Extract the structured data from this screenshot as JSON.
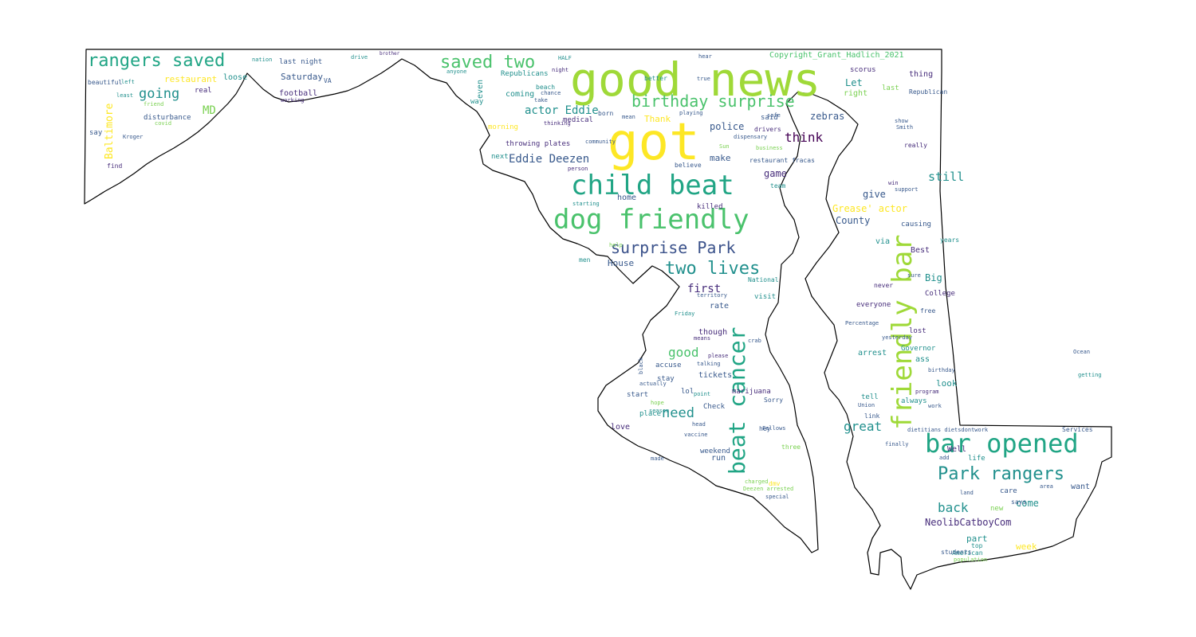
{
  "image": {
    "subject": "word cloud in the shape of Maryland",
    "outline_color": "#000000",
    "palette": {
      "yellow": "#e3e419",
      "lime": "#9fd938",
      "green": "#4ac26c",
      "teal": "#21a585",
      "cyan": "#21908d",
      "blue": "#38598c",
      "navy": "#3b528b",
      "purple": "#472d7b",
      "dark": "#440154",
      "pale_yellow": "#fde725",
      "pale_green": "#7ad151"
    }
  },
  "words": [
    {
      "text": "good news",
      "color": "lime"
    },
    {
      "text": "got",
      "color": "pale_yellow"
    },
    {
      "text": "child beat",
      "color": "teal"
    },
    {
      "text": "dog friendly",
      "color": "green"
    },
    {
      "text": "surprise Park",
      "color": "navy"
    },
    {
      "text": "two lives",
      "color": "cyan"
    },
    {
      "text": "beat cancer",
      "color": "teal"
    },
    {
      "text": "friendly bar",
      "color": "lime"
    },
    {
      "text": "bar opened",
      "color": "teal"
    },
    {
      "text": "Park rangers",
      "color": "cyan"
    },
    {
      "text": "rangers saved",
      "color": "teal"
    },
    {
      "text": "saved two",
      "color": "green"
    },
    {
      "text": "birthday surprise",
      "color": "green"
    },
    {
      "text": "actor Eddie",
      "color": "cyan"
    },
    {
      "text": "Eddie Deezen",
      "color": "blue"
    },
    {
      "text": "going",
      "color": "cyan"
    },
    {
      "text": "restaurant",
      "color": "pale_yellow"
    },
    {
      "text": "MD",
      "color": "pale_green"
    },
    {
      "text": "Baltimore",
      "color": "pale_yellow"
    },
    {
      "text": "Saturday",
      "color": "blue"
    },
    {
      "text": "football",
      "color": "purple"
    },
    {
      "text": "last night",
      "color": "blue"
    },
    {
      "text": "loose",
      "color": "cyan"
    },
    {
      "text": "disturbance",
      "color": "blue"
    },
    {
      "text": "Copyright_Grant_Hadlich_2021",
      "color": "green"
    },
    {
      "text": "Let",
      "color": "cyan"
    },
    {
      "text": "right",
      "color": "pale_green"
    },
    {
      "text": "police",
      "color": "blue"
    },
    {
      "text": "think",
      "color": "dark"
    },
    {
      "text": "zebras",
      "color": "blue"
    },
    {
      "text": "still",
      "color": "cyan"
    },
    {
      "text": "Grease' actor",
      "color": "pale_yellow"
    },
    {
      "text": "County",
      "color": "blue"
    },
    {
      "text": "give",
      "color": "blue"
    },
    {
      "text": "game",
      "color": "purple"
    },
    {
      "text": "make",
      "color": "blue"
    },
    {
      "text": "Thank",
      "color": "pale_yellow"
    },
    {
      "text": "home",
      "color": "blue"
    },
    {
      "text": "House",
      "color": "blue"
    },
    {
      "text": "first",
      "color": "purple"
    },
    {
      "text": "good",
      "color": "green"
    },
    {
      "text": "need",
      "color": "cyan"
    },
    {
      "text": "great",
      "color": "cyan"
    },
    {
      "text": "back",
      "color": "cyan"
    },
    {
      "text": "come",
      "color": "cyan"
    },
    {
      "text": "NeolibCatboyCom",
      "color": "purple"
    },
    {
      "text": "week",
      "color": "pale_yellow"
    },
    {
      "text": "Big",
      "color": "cyan"
    },
    {
      "text": "Best",
      "color": "purple"
    },
    {
      "text": "College",
      "color": "purple"
    },
    {
      "text": "Governor",
      "color": "cyan"
    },
    {
      "text": "look",
      "color": "cyan"
    },
    {
      "text": "Well",
      "color": "purple"
    },
    {
      "text": "want",
      "color": "blue"
    },
    {
      "text": "part",
      "color": "cyan"
    },
    {
      "text": "though",
      "color": "purple"
    },
    {
      "text": "tickets",
      "color": "blue"
    },
    {
      "text": "rate",
      "color": "blue"
    },
    {
      "text": "visit",
      "color": "cyan"
    },
    {
      "text": "love",
      "color": "purple"
    },
    {
      "text": "run",
      "color": "blue"
    },
    {
      "text": "coming",
      "color": "cyan"
    },
    {
      "text": "even",
      "color": "cyan"
    },
    {
      "text": "medical",
      "color": "purple"
    },
    {
      "text": "Republicans",
      "color": "cyan"
    },
    {
      "text": "scorus",
      "color": "purple"
    },
    {
      "text": "thing",
      "color": "purple"
    },
    {
      "text": "last",
      "color": "pale_green"
    },
    {
      "text": "Republican",
      "color": "blue"
    },
    {
      "text": "causing",
      "color": "blue"
    },
    {
      "text": "via",
      "color": "cyan"
    },
    {
      "text": "everyone",
      "color": "purple"
    },
    {
      "text": "lost",
      "color": "purple"
    },
    {
      "text": "arrest",
      "color": "cyan"
    },
    {
      "text": "ass",
      "color": "cyan"
    },
    {
      "text": "tell",
      "color": "cyan"
    },
    {
      "text": "always",
      "color": "cyan"
    },
    {
      "text": "link",
      "color": "blue"
    },
    {
      "text": "life",
      "color": "cyan"
    },
    {
      "text": "new",
      "color": "pale_green"
    },
    {
      "text": "care",
      "color": "blue"
    },
    {
      "text": "says",
      "color": "blue"
    },
    {
      "text": "stay",
      "color": "blue"
    },
    {
      "text": "accuse",
      "color": "blue"
    },
    {
      "text": "start",
      "color": "blue"
    },
    {
      "text": "lol",
      "color": "blue"
    },
    {
      "text": "place",
      "color": "cyan"
    },
    {
      "text": "Check",
      "color": "blue"
    },
    {
      "text": "weekend",
      "color": "blue"
    },
    {
      "text": "marijuana",
      "color": "purple"
    },
    {
      "text": "killed",
      "color": "purple"
    },
    {
      "text": "born",
      "color": "blue"
    },
    {
      "text": "said",
      "color": "blue"
    },
    {
      "text": "way",
      "color": "cyan"
    },
    {
      "text": "morning",
      "color": "pale_yellow"
    },
    {
      "text": "throwing plates",
      "color": "purple"
    },
    {
      "text": "next",
      "color": "cyan"
    },
    {
      "text": "real",
      "color": "purple"
    },
    {
      "text": "say",
      "color": "blue"
    },
    {
      "text": "find",
      "color": "purple"
    },
    {
      "text": "beautiful",
      "color": "blue"
    },
    {
      "text": "drivers",
      "color": "purple"
    },
    {
      "text": "dispensary",
      "color": "blue"
    },
    {
      "text": "restaurant fracas",
      "color": "blue"
    },
    {
      "text": "National",
      "color": "cyan"
    },
    {
      "text": "never",
      "color": "purple"
    },
    {
      "text": "free",
      "color": "blue"
    },
    {
      "text": "yesterday",
      "color": "blue"
    },
    {
      "text": "birthday",
      "color": "blue"
    },
    {
      "text": "dietitians dietsdontwork",
      "color": "blue"
    },
    {
      "text": "Services",
      "color": "blue"
    },
    {
      "text": "American",
      "color": "cyan"
    },
    {
      "text": "students",
      "color": "blue"
    },
    {
      "text": "top",
      "color": "cyan"
    },
    {
      "text": "dmv",
      "color": "pale_yellow"
    },
    {
      "text": "Percentage",
      "color": "blue"
    },
    {
      "text": "program",
      "color": "purple"
    },
    {
      "text": "VA",
      "color": "blue"
    },
    {
      "text": "nation",
      "color": "cyan"
    },
    {
      "text": "left",
      "color": "cyan"
    },
    {
      "text": "drive",
      "color": "cyan"
    },
    {
      "text": "brother",
      "color": "purple"
    },
    {
      "text": "HALF",
      "color": "cyan"
    },
    {
      "text": "night",
      "color": "purple"
    },
    {
      "text": "anyone",
      "color": "cyan"
    },
    {
      "text": "better",
      "color": "cyan"
    },
    {
      "text": "hear",
      "color": "blue"
    },
    {
      "text": "true",
      "color": "blue"
    },
    {
      "text": "playing",
      "color": "blue"
    },
    {
      "text": "safe",
      "color": "blue"
    },
    {
      "text": "show",
      "color": "blue"
    },
    {
      "text": "really",
      "color": "purple"
    },
    {
      "text": "Smith",
      "color": "blue"
    },
    {
      "text": "support",
      "color": "blue"
    },
    {
      "text": "years",
      "color": "cyan"
    },
    {
      "text": "sure",
      "color": "blue"
    },
    {
      "text": "win",
      "color": "purple"
    },
    {
      "text": "team",
      "color": "cyan"
    },
    {
      "text": "believe",
      "color": "blue"
    },
    {
      "text": "person",
      "color": "purple"
    },
    {
      "text": "men",
      "color": "cyan"
    },
    {
      "text": "starting",
      "color": "cyan"
    },
    {
      "text": "help",
      "color": "pale_green"
    },
    {
      "text": "black",
      "color": "blue"
    },
    {
      "text": "please",
      "color": "purple"
    },
    {
      "text": "talking",
      "color": "blue"
    },
    {
      "text": "actually",
      "color": "blue"
    },
    {
      "text": "point",
      "color": "cyan"
    },
    {
      "text": "hope",
      "color": "pale_green"
    },
    {
      "text": "season",
      "color": "cyan"
    },
    {
      "text": "head",
      "color": "blue"
    },
    {
      "text": "vaccine",
      "color": "blue"
    },
    {
      "text": "hey",
      "color": "blue"
    },
    {
      "text": "three",
      "color": "pale_green"
    },
    {
      "text": "Sorry",
      "color": "blue"
    },
    {
      "text": "crab",
      "color": "blue"
    },
    {
      "text": "means",
      "color": "purple"
    },
    {
      "text": "Friday",
      "color": "cyan"
    },
    {
      "text": "territory",
      "color": "blue"
    },
    {
      "text": "finally",
      "color": "blue"
    },
    {
      "text": "add",
      "color": "blue"
    },
    {
      "text": "land",
      "color": "blue"
    },
    {
      "text": "area",
      "color": "blue"
    },
    {
      "text": "work",
      "color": "blue"
    },
    {
      "text": "Union",
      "color": "blue"
    },
    {
      "text": "made",
      "color": "blue"
    },
    {
      "text": "charged",
      "color": "pale_green"
    },
    {
      "text": "Deezen arrested",
      "color": "pale_green"
    },
    {
      "text": "special",
      "color": "blue"
    },
    {
      "text": "Fellows",
      "color": "blue"
    },
    {
      "text": "business",
      "color": "pale_green"
    },
    {
      "text": "Sun",
      "color": "pale_green"
    },
    {
      "text": "community",
      "color": "blue"
    },
    {
      "text": "thinking",
      "color": "purple"
    },
    {
      "text": "beach",
      "color": "cyan"
    },
    {
      "text": "chance",
      "color": "blue"
    },
    {
      "text": "take",
      "color": "blue"
    },
    {
      "text": "mean",
      "color": "blue"
    },
    {
      "text": "Kroger",
      "color": "blue"
    },
    {
      "text": "covid",
      "color": "pale_green"
    },
    {
      "text": "friend",
      "color": "pale_green"
    },
    {
      "text": "working",
      "color": "purple"
    },
    {
      "text": "least",
      "color": "cyan"
    },
    {
      "text": "population",
      "color": "pale_green"
    },
    {
      "text": "Ocean",
      "color": "blue"
    },
    {
      "text": "getting",
      "color": "cyan"
    }
  ]
}
